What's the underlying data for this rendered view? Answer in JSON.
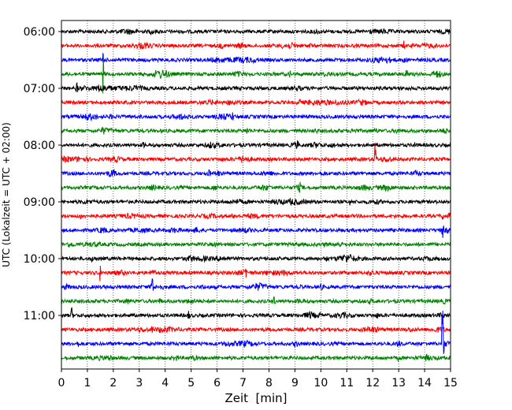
{
  "chart_data": {
    "type": "line",
    "title": "",
    "xlabel": "Zeit  [min]",
    "ylabel": "UTC (Lokalzeit = UTC + 02:00)",
    "xlim": [
      0,
      15
    ],
    "x_ticks": [
      "0",
      "1",
      "2",
      "3",
      "4",
      "5",
      "6",
      "7",
      "8",
      "9",
      "10",
      "11",
      "12",
      "13",
      "14",
      "15"
    ],
    "y_ticks": [
      "06:00",
      "07:00",
      "08:00",
      "09:00",
      "10:00",
      "11:00"
    ],
    "grid": "vertical-dotted",
    "legend": "none",
    "trace_interval_minutes": 15,
    "colors": [
      "#000000",
      "#ff0000",
      "#0000ff",
      "#008000"
    ],
    "traces": [
      {
        "time": "06:00",
        "color": "#000000",
        "events": []
      },
      {
        "time": "06:15",
        "color": "#ff0000",
        "events": [
          {
            "x": 13.2,
            "amp": 0.5
          }
        ]
      },
      {
        "time": "06:30",
        "color": "#0000ff",
        "events": [
          {
            "x": 1.6,
            "amp": 1.2
          },
          {
            "x": 13.2,
            "amp": 0.5
          }
        ]
      },
      {
        "time": "06:45",
        "color": "#008000",
        "events": [
          {
            "x": 1.6,
            "amp": 3.5
          },
          {
            "x": 13.3,
            "amp": 1.6
          },
          {
            "x": 8.8,
            "amp": 0.4
          }
        ]
      },
      {
        "time": "07:00",
        "color": "#000000",
        "events": [
          {
            "x": 0.6,
            "amp": 0.6
          }
        ]
      },
      {
        "time": "07:15",
        "color": "#ff0000",
        "events": [
          {
            "x": 9.2,
            "amp": 0.4
          }
        ]
      },
      {
        "time": "07:30",
        "color": "#0000ff",
        "events": [
          {
            "x": 6.6,
            "amp": 0.5
          }
        ]
      },
      {
        "time": "07:45",
        "color": "#008000",
        "events": [
          {
            "x": 12.1,
            "amp": 0.5
          },
          {
            "x": 1.6,
            "amp": 0.5
          }
        ]
      },
      {
        "time": "08:00",
        "color": "#000000",
        "events": [
          {
            "x": 9.1,
            "amp": 0.6
          },
          {
            "x": 13.6,
            "amp": 0.4
          }
        ]
      },
      {
        "time": "08:15",
        "color": "#ff0000",
        "events": [
          {
            "x": 12.1,
            "amp": 2.6
          },
          {
            "x": 7.0,
            "amp": 0.3
          }
        ]
      },
      {
        "time": "08:30",
        "color": "#0000ff",
        "events": [
          {
            "x": 5.7,
            "amp": 0.5
          }
        ]
      },
      {
        "time": "08:45",
        "color": "#008000",
        "events": [
          {
            "x": 9.2,
            "amp": 0.4
          }
        ]
      },
      {
        "time": "09:00",
        "color": "#000000",
        "events": [
          {
            "x": 11.1,
            "amp": 0.4
          }
        ]
      },
      {
        "time": "09:15",
        "color": "#ff0000",
        "events": [
          {
            "x": 14.7,
            "amp": 0.5
          }
        ]
      },
      {
        "time": "09:30",
        "color": "#0000ff",
        "events": [
          {
            "x": 14.7,
            "amp": 1.2
          }
        ]
      },
      {
        "time": "09:45",
        "color": "#008000",
        "events": []
      },
      {
        "time": "10:00",
        "color": "#000000",
        "events": [
          {
            "x": 1.2,
            "amp": 0.6
          },
          {
            "x": 10.2,
            "amp": 0.5
          }
        ]
      },
      {
        "time": "10:15",
        "color": "#ff0000",
        "events": [
          {
            "x": 1.5,
            "amp": 1.2
          },
          {
            "x": 7.1,
            "amp": 1.0
          }
        ]
      },
      {
        "time": "10:30",
        "color": "#0000ff",
        "events": [
          {
            "x": 3.5,
            "amp": 2.3
          },
          {
            "x": 9.2,
            "amp": 0.4
          }
        ]
      },
      {
        "time": "10:45",
        "color": "#008000",
        "events": [
          {
            "x": 8.2,
            "amp": 0.7
          }
        ]
      },
      {
        "time": "11:00",
        "color": "#000000",
        "events": [
          {
            "x": 0.4,
            "amp": 1.0
          },
          {
            "x": 4.9,
            "amp": 0.5
          }
        ]
      },
      {
        "time": "11:15",
        "color": "#ff0000",
        "events": [
          {
            "x": 3.5,
            "amp": 0.5
          }
        ]
      },
      {
        "time": "11:30",
        "color": "#0000ff",
        "events": [
          {
            "x": 14.7,
            "amp": 10.0
          }
        ]
      },
      {
        "time": "11:45",
        "color": "#008000",
        "events": [
          {
            "x": 13.0,
            "amp": 0.4
          }
        ]
      }
    ]
  }
}
